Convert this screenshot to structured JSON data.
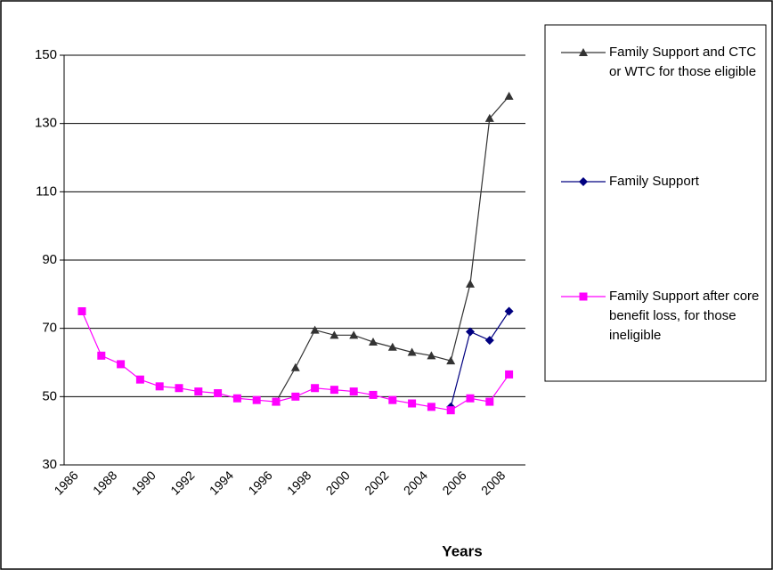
{
  "chart_data": {
    "type": "line",
    "x_label": "Years",
    "categories": [
      "1986",
      null,
      "1988",
      null,
      "1990",
      null,
      "1992",
      null,
      "1994",
      null,
      "1996",
      null,
      "1998",
      null,
      "2000",
      null,
      "2002",
      null,
      "2004",
      null,
      "2006",
      null,
      "2008"
    ],
    "ylim": [
      30,
      150
    ],
    "yticks": [
      30,
      50,
      70,
      90,
      110,
      130,
      150
    ],
    "grid": true,
    "series": [
      {
        "name": "Family Support and CTC or WTC for those eligible",
        "color": "#333333",
        "marker": "triangle",
        "values": [
          null,
          null,
          null,
          null,
          null,
          null,
          null,
          null,
          null,
          null,
          48.5,
          58.5,
          69.5,
          68,
          68,
          66,
          64.5,
          63,
          62,
          60.5,
          83,
          131.5,
          138
        ]
      },
      {
        "name": "Family Support",
        "color": "#000080",
        "marker": "diamond",
        "values": [
          null,
          null,
          null,
          null,
          null,
          null,
          null,
          null,
          null,
          null,
          null,
          null,
          null,
          null,
          null,
          null,
          null,
          null,
          null,
          47,
          69,
          66.5,
          75
        ]
      },
      {
        "name": "Family Support after core benefit loss, for those ineligible",
        "color": "#ff00ff",
        "marker": "square",
        "values": [
          75,
          62,
          59.5,
          55,
          53,
          52.5,
          51.5,
          51,
          49.5,
          49,
          48.5,
          50,
          52.5,
          52,
          51.5,
          50.5,
          49,
          48,
          47,
          46,
          49.5,
          48.5,
          56.5
        ]
      }
    ]
  }
}
